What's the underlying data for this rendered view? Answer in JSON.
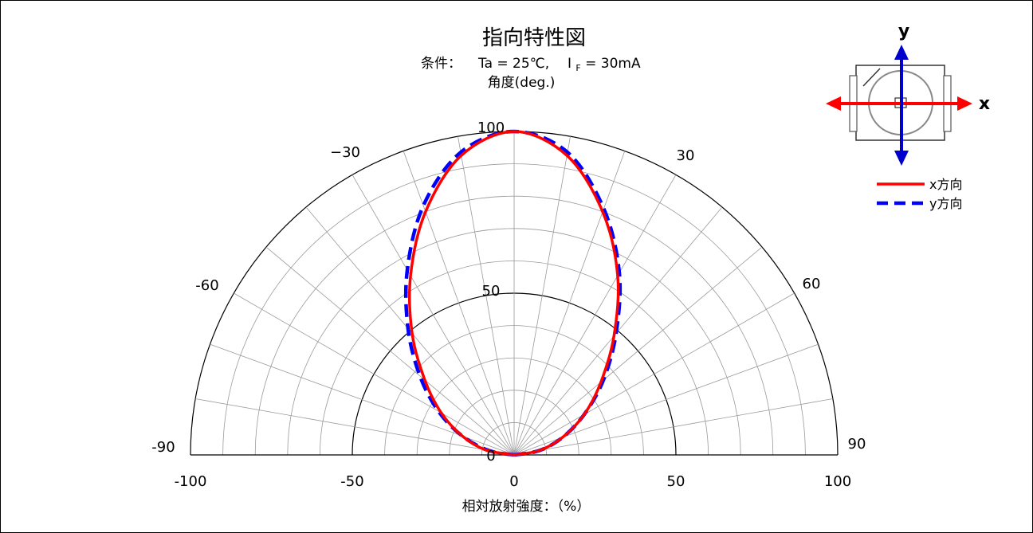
{
  "chart_data": {
    "type": "polar",
    "title": "指向特性図",
    "condition": {
      "prefix": "条件：",
      "ta": "Ta = 25℃,",
      "if_main": "I",
      "if_sub": "F",
      "if_rest": " = 30mA"
    },
    "angle_label": "角度(deg.)",
    "xlabel": "相対放射強度：（%）",
    "x_ticks": [
      "-100",
      "-50",
      "0",
      "50",
      "100"
    ],
    "radial_ticks": [
      "0",
      "50",
      "100"
    ],
    "angle_ticks": [
      "-90",
      "-60",
      "−30",
      "30",
      "60",
      "90"
    ],
    "range": [
      0,
      100
    ],
    "theta_range": [
      -90,
      90
    ],
    "series": [
      {
        "name": "x方向",
        "color": "#ff0000",
        "style": "solid",
        "theta": [
          -90,
          -80,
          -70,
          -60,
          -50,
          -40,
          -30,
          -20,
          -10,
          0,
          10,
          20,
          30,
          40,
          50,
          60,
          70,
          80,
          90
        ],
        "r": [
          0,
          9,
          17,
          26,
          36,
          49,
          64,
          80,
          94,
          100,
          94,
          80,
          64,
          48,
          35,
          25,
          16,
          8,
          0
        ]
      },
      {
        "name": "y方向",
        "color": "#0000ff",
        "style": "dashed",
        "theta": [
          -90,
          -80,
          -70,
          -60,
          -50,
          -40,
          -30,
          -20,
          -10,
          0,
          10,
          20,
          30,
          40,
          50,
          60,
          70,
          80,
          90
        ],
        "r": [
          0,
          8,
          17,
          27,
          38,
          51,
          66,
          82,
          95,
          100,
          95,
          81,
          65,
          49,
          36,
          25,
          16,
          8,
          0
        ]
      }
    ]
  },
  "inset": {
    "x_label": "x",
    "y_label": "y"
  }
}
